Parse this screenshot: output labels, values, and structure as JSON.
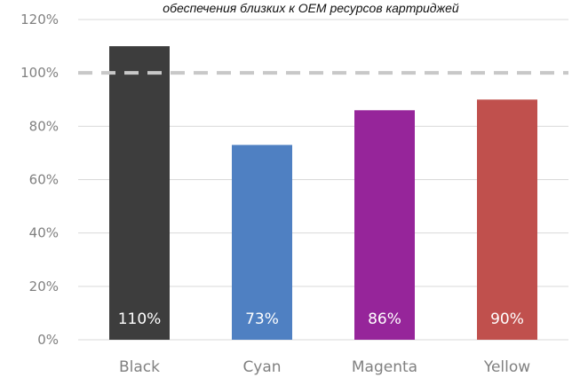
{
  "chart_data": {
    "type": "bar",
    "title": "обеспечения близких к OEM ресурсов картриджей",
    "categories": [
      "Black",
      "Cyan",
      "Magenta",
      "Yellow"
    ],
    "values": [
      110,
      73,
      86,
      90
    ],
    "data_labels": [
      "110%",
      "73%",
      "86%",
      "90%"
    ],
    "colors": [
      "#3d3d3d",
      "#4f80c2",
      "#96259a",
      "#c0504d"
    ],
    "ylim": [
      0,
      120
    ],
    "yticks": [
      0,
      20,
      40,
      60,
      80,
      100,
      120
    ],
    "ytick_labels": [
      "0%",
      "20%",
      "40%",
      "60%",
      "80%",
      "100%",
      "120%"
    ],
    "reference_line": {
      "value": 100,
      "style": "dashed",
      "color": "#c8c8c8"
    },
    "grid": true,
    "gridline_color": "#d9d9d9",
    "legend": "none"
  }
}
